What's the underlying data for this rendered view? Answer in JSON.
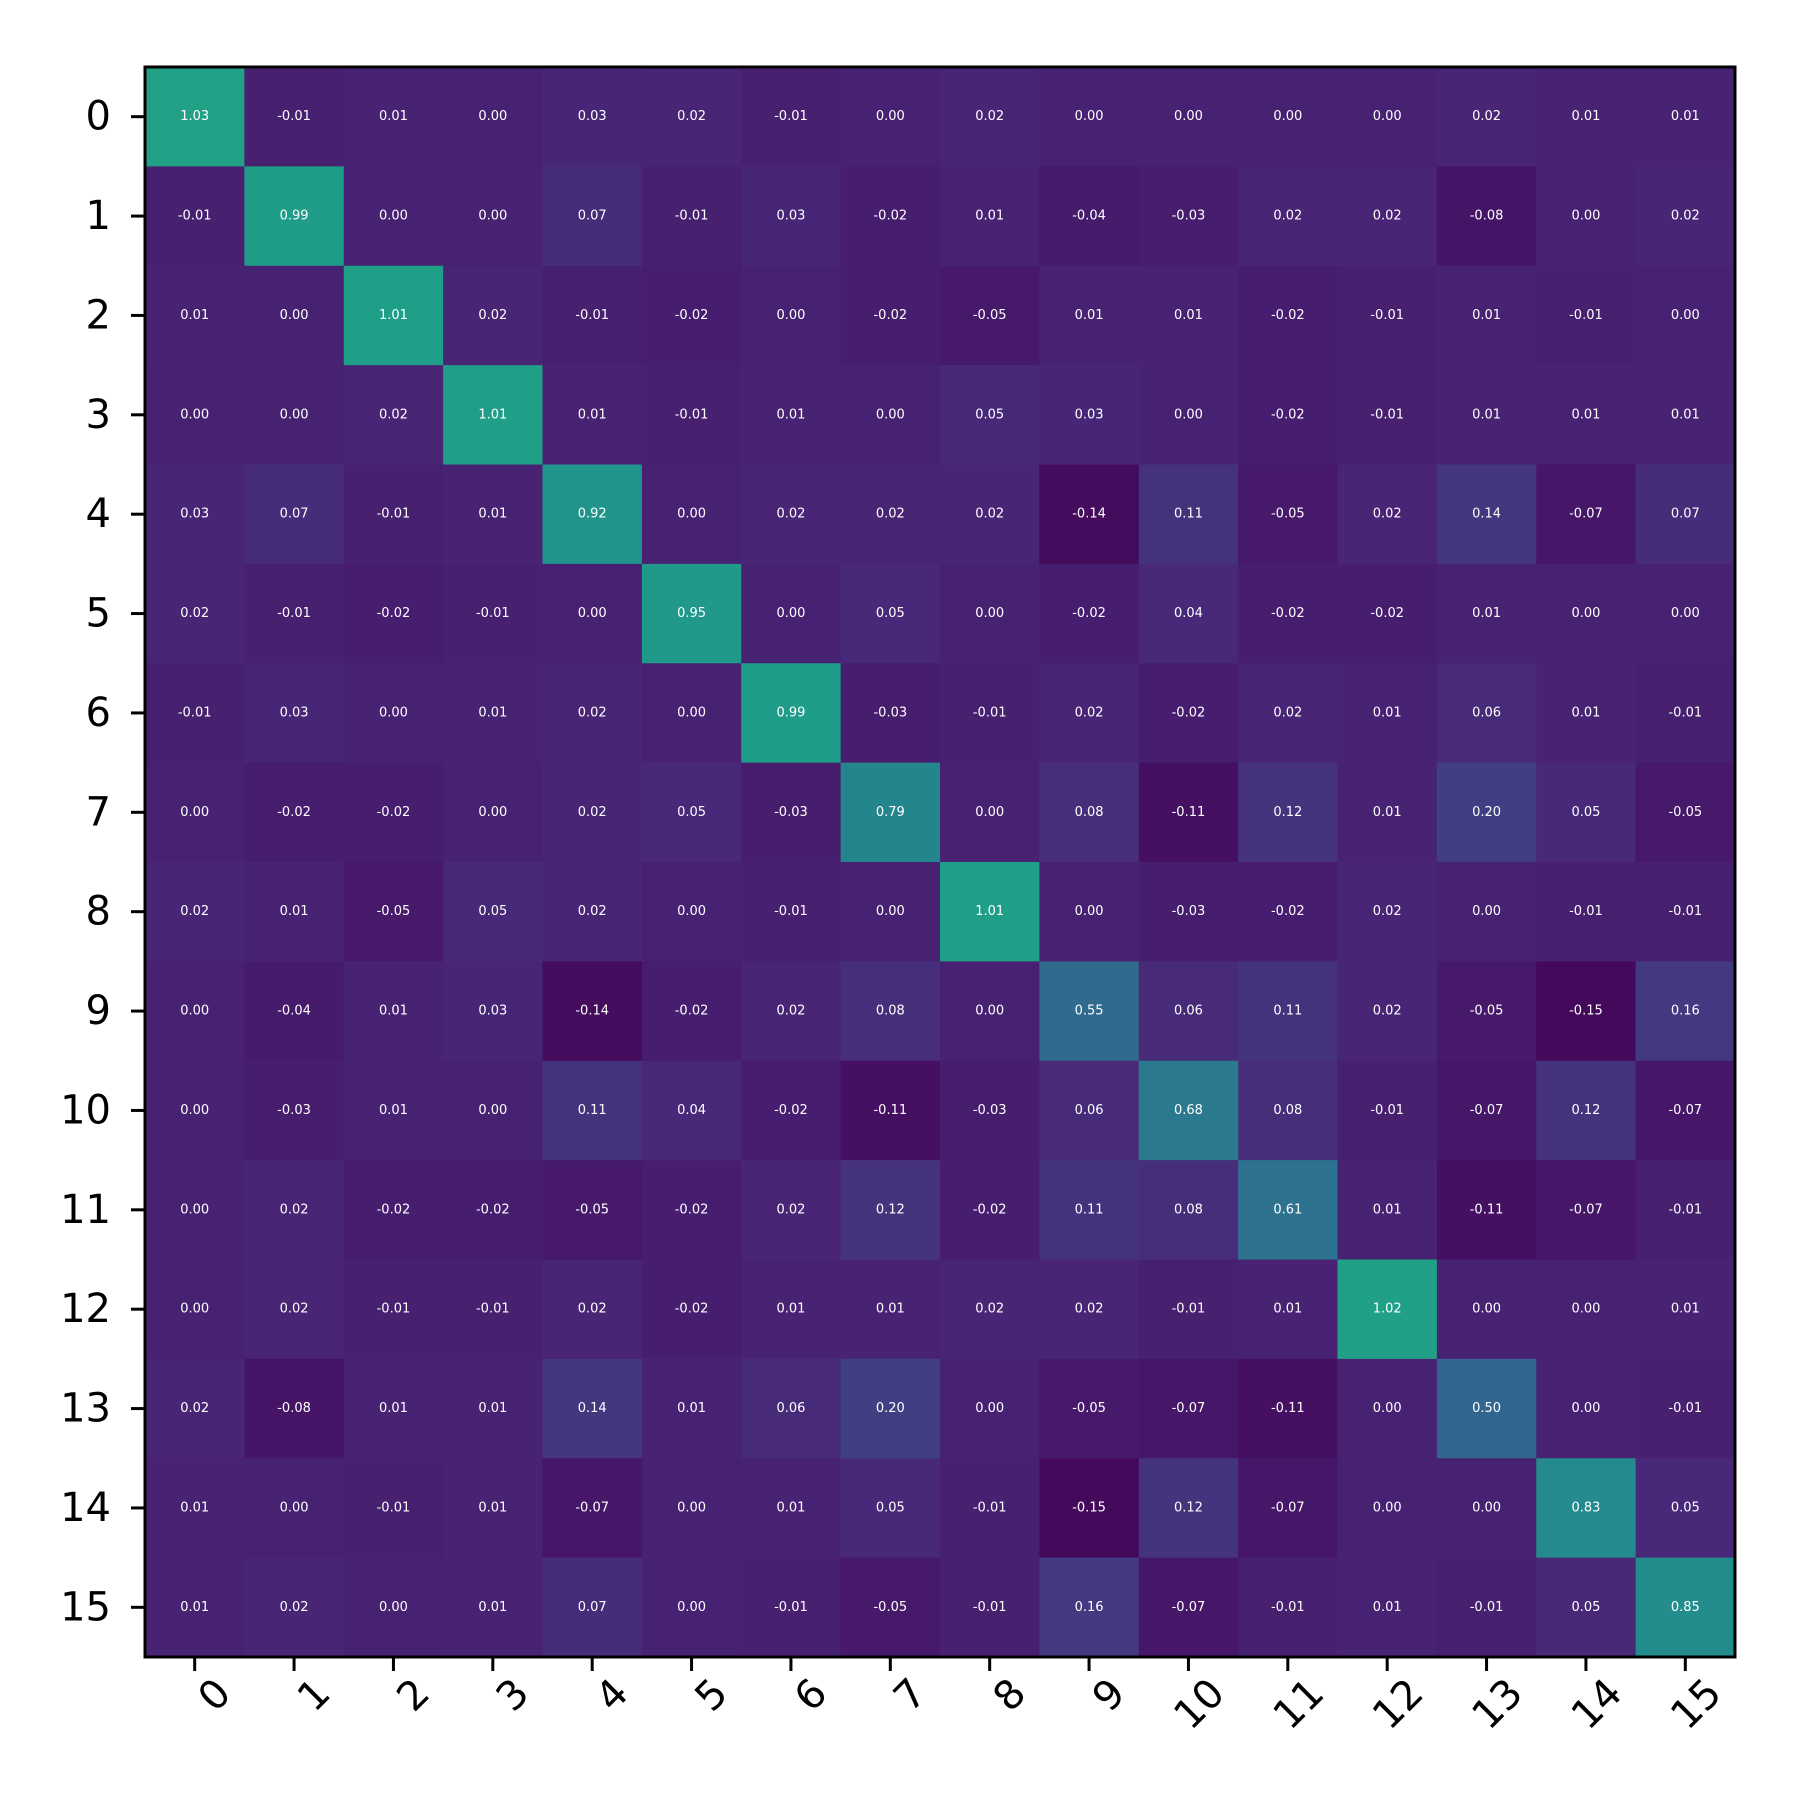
{
  "chart_data": {
    "type": "heatmap",
    "title": "",
    "xlabel": "",
    "ylabel": "",
    "x_categories": [
      "0",
      "1",
      "2",
      "3",
      "4",
      "5",
      "6",
      "7",
      "8",
      "9",
      "10",
      "11",
      "12",
      "13",
      "14",
      "15"
    ],
    "y_categories": [
      "0",
      "1",
      "2",
      "3",
      "4",
      "5",
      "6",
      "7",
      "8",
      "9",
      "10",
      "11",
      "12",
      "13",
      "14",
      "15"
    ],
    "colormap": "viridis",
    "vmin": -0.2,
    "vmax": 2.2,
    "value_format": "0.00",
    "grid": false,
    "matrix": [
      [
        1.03,
        -0.01,
        0.01,
        0.0,
        0.03,
        0.02,
        -0.01,
        -0.0,
        0.02,
        0.0,
        0.0,
        -0.0,
        -0.0,
        0.02,
        0.01,
        0.01
      ],
      [
        -0.01,
        0.99,
        -0.0,
        -0.0,
        0.07,
        -0.01,
        0.03,
        -0.02,
        0.01,
        -0.04,
        -0.03,
        0.02,
        0.02,
        -0.08,
        -0.0,
        0.02
      ],
      [
        0.01,
        -0.0,
        1.01,
        0.02,
        -0.01,
        -0.02,
        -0.0,
        -0.02,
        -0.05,
        0.01,
        0.01,
        -0.02,
        -0.01,
        0.01,
        -0.01,
        -0.0
      ],
      [
        0.0,
        -0.0,
        0.02,
        1.01,
        0.01,
        -0.01,
        0.01,
        -0.0,
        0.05,
        0.03,
        0.0,
        -0.02,
        -0.01,
        0.01,
        0.01,
        0.01
      ],
      [
        0.03,
        0.07,
        -0.01,
        0.01,
        0.92,
        0.0,
        0.02,
        0.02,
        0.02,
        -0.14,
        0.11,
        -0.05,
        0.02,
        0.14,
        -0.07,
        0.07
      ],
      [
        0.02,
        -0.01,
        -0.02,
        -0.01,
        0.0,
        0.95,
        -0.0,
        0.05,
        -0.0,
        -0.02,
        0.04,
        -0.02,
        -0.02,
        0.01,
        0.0,
        0.0
      ],
      [
        -0.01,
        0.03,
        -0.0,
        0.01,
        0.02,
        -0.0,
        0.99,
        -0.03,
        -0.01,
        0.02,
        -0.02,
        0.02,
        0.01,
        0.06,
        0.01,
        -0.01
      ],
      [
        -0.0,
        -0.02,
        -0.02,
        -0.0,
        0.02,
        0.05,
        -0.03,
        0.79,
        -0.0,
        0.08,
        -0.11,
        0.12,
        0.01,
        0.2,
        0.05,
        -0.05
      ],
      [
        0.02,
        0.01,
        -0.05,
        0.05,
        0.02,
        -0.0,
        -0.01,
        -0.0,
        1.01,
        -0.0,
        -0.03,
        -0.02,
        0.02,
        0.0,
        -0.01,
        -0.01
      ],
      [
        0.0,
        -0.04,
        0.01,
        0.03,
        -0.14,
        -0.02,
        0.02,
        0.08,
        -0.0,
        0.55,
        0.06,
        0.11,
        0.02,
        -0.05,
        -0.15,
        0.16
      ],
      [
        0.0,
        -0.03,
        0.01,
        0.0,
        0.11,
        0.04,
        -0.02,
        -0.11,
        -0.03,
        0.06,
        0.68,
        0.08,
        -0.01,
        -0.07,
        0.12,
        -0.07
      ],
      [
        -0.0,
        0.02,
        -0.02,
        -0.02,
        -0.05,
        -0.02,
        0.02,
        0.12,
        -0.02,
        0.11,
        0.08,
        0.61,
        0.01,
        -0.11,
        -0.07,
        -0.01
      ],
      [
        -0.0,
        0.02,
        -0.01,
        -0.01,
        0.02,
        -0.02,
        0.01,
        0.01,
        0.02,
        0.02,
        -0.01,
        0.01,
        1.02,
        0.0,
        -0.0,
        0.01
      ],
      [
        0.02,
        -0.08,
        0.01,
        0.01,
        0.14,
        0.01,
        0.06,
        0.2,
        0.0,
        -0.05,
        -0.07,
        -0.11,
        0.0,
        0.5,
        0.0,
        -0.01
      ],
      [
        0.01,
        -0.0,
        -0.01,
        0.01,
        -0.07,
        0.0,
        0.01,
        0.05,
        -0.01,
        -0.15,
        0.12,
        -0.07,
        -0.0,
        0.0,
        0.83,
        0.05
      ],
      [
        0.01,
        0.02,
        -0.0,
        0.01,
        0.07,
        0.0,
        -0.01,
        -0.05,
        -0.01,
        0.16,
        -0.07,
        -0.01,
        0.01,
        -0.01,
        0.05,
        0.85
      ]
    ]
  }
}
